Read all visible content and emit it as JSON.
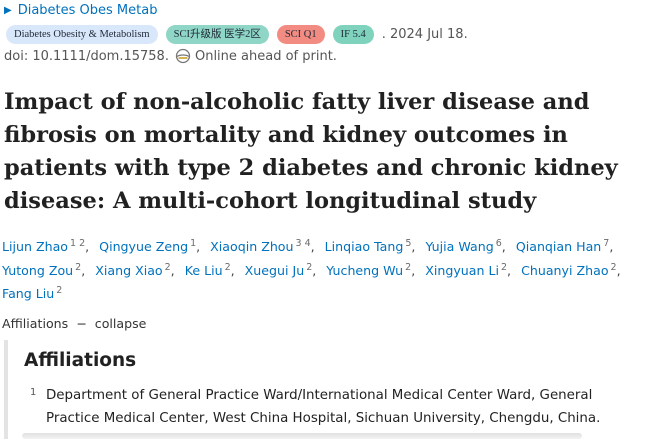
{
  "journal": {
    "abbrev": "Diabetes Obes Metab",
    "caret_icon": "triangle-right"
  },
  "badges": {
    "journal_name": "Diabetes Obesity & Metabolism",
    "sci_category": "SCI升级版 医学2区",
    "sci_quartile": "SCI Q1",
    "impact_factor": "IF 5.4"
  },
  "pub_date": ". 2024 Jul 18.",
  "doi": {
    "text": "doi: 10.1111/dom.15758.",
    "status": "Online ahead of print."
  },
  "title": "Impact of non‐alcoholic fatty liver disease and fibrosis on mortality and kidney outcomes in patients with type 2 diabetes and chronic kidney disease: A multi‐cohort longitudinal study",
  "authors": [
    {
      "name": "Lijun Zhao",
      "aff": "1 2"
    },
    {
      "name": "Qingyue Zeng",
      "aff": "1"
    },
    {
      "name": "Xiaoqin Zhou",
      "aff": "3 4"
    },
    {
      "name": "Linqiao Tang",
      "aff": "5"
    },
    {
      "name": "Yujia Wang",
      "aff": "6"
    },
    {
      "name": "Qianqian Han",
      "aff": "7"
    },
    {
      "name": "Yutong Zou",
      "aff": "2"
    },
    {
      "name": "Xiang Xiao",
      "aff": "2"
    },
    {
      "name": "Ke Liu",
      "aff": "2"
    },
    {
      "name": "Xuegui Ju",
      "aff": "2"
    },
    {
      "name": "Yucheng Wu",
      "aff": "2"
    },
    {
      "name": "Xingyuan Li",
      "aff": "2"
    },
    {
      "name": "Chuanyi Zhao",
      "aff": "2"
    },
    {
      "name": "Fang Liu",
      "aff": "2"
    }
  ],
  "author_separator": ",",
  "affiliations_toggle": {
    "label": "Affiliations",
    "dash": "−",
    "action": "collapse"
  },
  "affiliations": {
    "heading": "Affiliations",
    "items": [
      {
        "num": "1",
        "text": "Department of General Practice Ward/International Medical Center Ward, General Practice Medical Center, West China Hospital, Sichuan University, Chengdu, China."
      }
    ]
  },
  "colors": {
    "link": "#0071bc",
    "badge_journal": "#d9e7fb",
    "badge_sci_category": "#8fd6c6",
    "badge_sci_quartile": "#f28b82",
    "badge_if": "#7fd3bd"
  }
}
